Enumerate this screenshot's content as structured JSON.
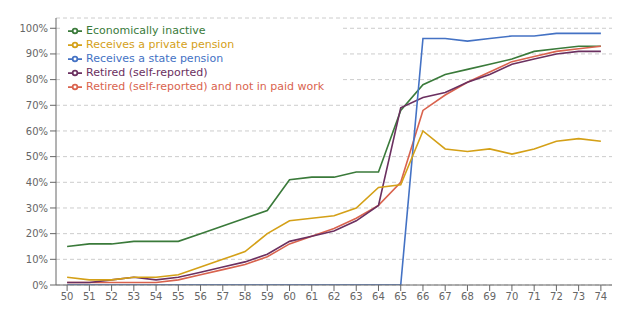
{
  "chart_data": {
    "type": "line",
    "x": [
      50,
      51,
      52,
      53,
      54,
      55,
      56,
      57,
      58,
      59,
      60,
      61,
      62,
      63,
      64,
      65,
      66,
      67,
      68,
      69,
      70,
      71,
      72,
      73,
      74
    ],
    "series": [
      {
        "name": "Economically inactive",
        "color": "#3a7a3a",
        "values": [
          15,
          16,
          16,
          17,
          17,
          17,
          20,
          23,
          26,
          29,
          41,
          42,
          42,
          44,
          44,
          68,
          78,
          82,
          84,
          86,
          88,
          91,
          92,
          93,
          93
        ]
      },
      {
        "name": "Retired (self-reported) and not in paid work",
        "color": "#d9634e",
        "values": [
          1,
          1,
          1,
          1,
          1,
          2,
          4,
          6,
          8,
          11,
          16,
          19,
          22,
          26,
          31,
          40,
          68,
          74,
          79,
          83,
          87,
          89,
          91,
          92,
          93
        ]
      },
      {
        "name": "Retired (self-reported)",
        "color": "#6b3060",
        "values": [
          1,
          1,
          2,
          3,
          2,
          3,
          5,
          7,
          9,
          12,
          17,
          19,
          21,
          25,
          31,
          69,
          73,
          75,
          79,
          82,
          86,
          88,
          90,
          91,
          91
        ]
      },
      {
        "name": "Receives a state pension",
        "color": "#4472c4",
        "values": [
          0,
          0,
          0,
          0,
          0,
          0,
          0,
          0,
          0,
          0,
          0,
          0,
          0,
          0,
          0,
          0,
          96,
          96,
          95,
          96,
          97,
          97,
          98,
          98,
          98
        ]
      },
      {
        "name": "Receives a private pension",
        "color": "#d4a017",
        "values": [
          3,
          2,
          2,
          3,
          3,
          4,
          7,
          10,
          13,
          20,
          25,
          26,
          27,
          30,
          38,
          39,
          60,
          53,
          52,
          53,
          51,
          53,
          56,
          57,
          56
        ]
      }
    ],
    "xlim": [
      49.5,
      74.5
    ],
    "xticks": [
      50,
      51,
      52,
      53,
      54,
      55,
      56,
      57,
      58,
      59,
      60,
      61,
      62,
      63,
      64,
      65,
      66,
      67,
      68,
      69,
      70,
      71,
      72,
      73,
      74
    ],
    "ylim": [
      0,
      104
    ],
    "yticks": [
      {
        "value": 0,
        "label": "0%"
      },
      {
        "value": 10,
        "label": "10%"
      },
      {
        "value": 20,
        "label": "20%"
      },
      {
        "value": 30,
        "label": "30%"
      },
      {
        "value": 40,
        "label": "40%"
      },
      {
        "value": 50,
        "label": "50%"
      },
      {
        "value": 60,
        "label": "60%"
      },
      {
        "value": 70,
        "label": "70%"
      },
      {
        "value": 80,
        "label": "80%"
      },
      {
        "value": 90,
        "label": "90%"
      },
      {
        "value": 100,
        "label": "100%"
      }
    ],
    "grid": true,
    "legend": "upper left"
  }
}
